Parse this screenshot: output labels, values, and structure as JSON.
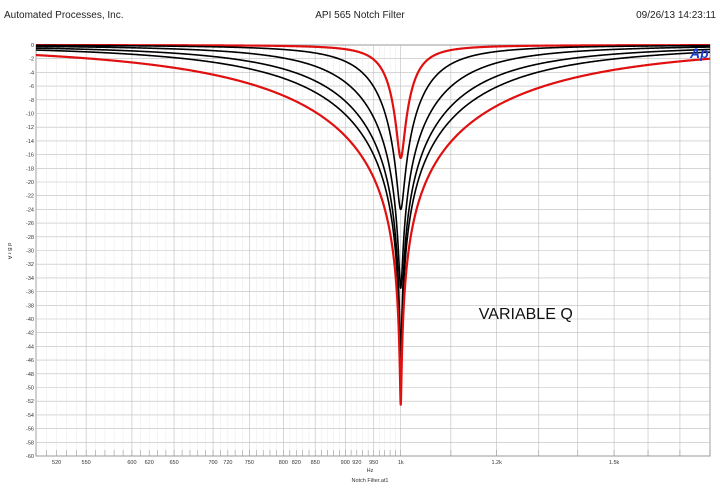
{
  "header": {
    "company": "Automated Processes, Inc.",
    "title": "API 565 Notch Filter",
    "timestamp": "09/26/13 14:23:11"
  },
  "logo_text": "Ap",
  "chart_data": {
    "type": "line",
    "title": "API 565 Notch Filter",
    "xlabel": "Hz",
    "xlabel_sub": "Notch Filter.at1",
    "ylabel": "d B r A",
    "xscale": "log",
    "xlim": [
      500,
      1800
    ],
    "ylim": [
      -60,
      0
    ],
    "grid": true,
    "notch_center_hz": 1000,
    "x_tick_labels": [
      {
        "value": 520,
        "label": "520"
      },
      {
        "value": 550,
        "label": "550"
      },
      {
        "value": 600,
        "label": "600"
      },
      {
        "value": 620,
        "label": "620"
      },
      {
        "value": 650,
        "label": "650"
      },
      {
        "value": 700,
        "label": "700"
      },
      {
        "value": 720,
        "label": "720"
      },
      {
        "value": 750,
        "label": "750"
      },
      {
        "value": 800,
        "label": "800"
      },
      {
        "value": 820,
        "label": "820"
      },
      {
        "value": 850,
        "label": "850"
      },
      {
        "value": 900,
        "label": "900"
      },
      {
        "value": 920,
        "label": "920"
      },
      {
        "value": 950,
        "label": "950"
      },
      {
        "value": 1000,
        "label": "1k"
      },
      {
        "value": 1200,
        "label": "1.2k"
      },
      {
        "value": 1500,
        "label": "1.5k"
      }
    ],
    "y_ticks": [
      0,
      -2,
      -4,
      -6,
      -8,
      -10,
      -12,
      -14,
      -16,
      -18,
      -20,
      -22,
      -24,
      -26,
      -28,
      -30,
      -32,
      -34,
      -36,
      -38,
      -40,
      -42,
      -44,
      -46,
      -48,
      -50,
      -52,
      -54,
      -56,
      -58,
      -60
    ],
    "annotation": {
      "text": "VARIABLE Q",
      "x": 1160,
      "y": -40
    },
    "series": [
      {
        "color": "#e01010",
        "q": 12.0,
        "depth": -16.5
      },
      {
        "color": "#000000",
        "q": 5.5,
        "depth": -24
      },
      {
        "color": "#000000",
        "q": 3.0,
        "depth": -35.5
      },
      {
        "color": "#000000",
        "q": 2.0,
        "depth": -45.5
      },
      {
        "color": "#000000",
        "q": 1.55,
        "depth": -49.5
      },
      {
        "color": "#e01010",
        "q": 1.05,
        "depth": -52.5
      }
    ]
  }
}
